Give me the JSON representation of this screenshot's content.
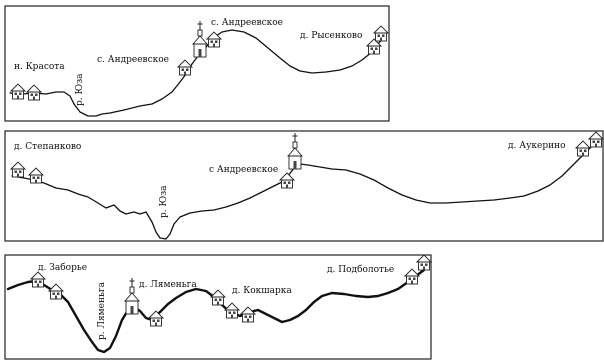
{
  "panels": [
    {
      "id": "top",
      "labels": {
        "krasota": "н. Красота",
        "river": "р. Юза",
        "andreevskoe_1": "с. Андреевское",
        "andreevskoe_2": "с. Андреевское",
        "rysenkovo": "д. Рысенково"
      }
    },
    {
      "id": "middle",
      "labels": {
        "stepankovo": "д. Степанково",
        "andreevskoe": "с Андреевское",
        "river": "р. Юза",
        "aukerino": "д. Аукерино"
      }
    },
    {
      "id": "bottom",
      "labels": {
        "zaborye": "д. Заборье",
        "river": "р. Ляменьга",
        "lyamenga": "д. Ляменьга",
        "kokshara": "д. Кокшарка",
        "podbolotye": "д. Подболотье"
      }
    }
  ],
  "icons": {
    "house": "house-icon",
    "church": "church-icon"
  }
}
